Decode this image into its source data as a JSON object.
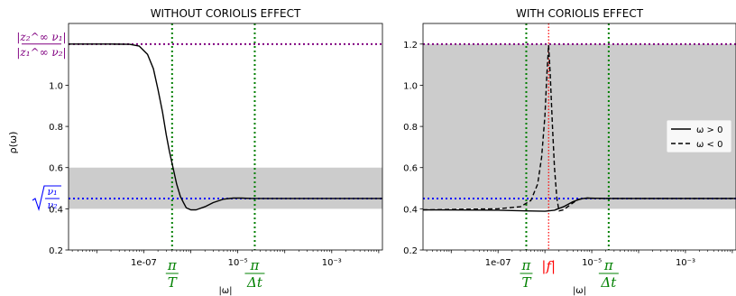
{
  "ylabel": "ρ(ω)",
  "xlabel": "|ω|",
  "colors": {
    "upper_ref": "#800080",
    "lower_ref": "#0000ff",
    "markers": "#008000",
    "coriolis": "#ff0000",
    "band": "#cccccc",
    "curve": "#000000"
  },
  "ref_labels": {
    "upper_num": "|z₂^∞ ν₁|",
    "upper_den": "|z₁^∞ ν₂|",
    "lower_num": "ν₁",
    "lower_den": "ν₂"
  },
  "marker_labels": {
    "pi_T": {
      "num": "π",
      "den": "T"
    },
    "pi_dt": {
      "num": "π",
      "den": "Δt"
    },
    "f": "|f|"
  },
  "chart_data": [
    {
      "type": "line",
      "title": "WITHOUT CORIOLIS EFFECT",
      "xscale": "log",
      "xlim": [
        2.5e-09,
        0.012
      ],
      "ylim": [
        0.2,
        1.3
      ],
      "yticks": [
        0.2,
        0.4,
        0.6,
        0.8,
        1.0
      ],
      "ytick_labels": [
        "0.2",
        "0.4",
        "0.6",
        "0.8",
        "1.0"
      ],
      "upper_ref_label_y": 1.2,
      "lower_ref_label_y": 0.45,
      "xticks": [
        {
          "x": 1e-07,
          "label": "1e-07"
        },
        {
          "x": 1e-05,
          "label": "10⁻⁵"
        },
        {
          "x": 0.001,
          "label": "10⁻³"
        }
      ],
      "shaded_band": [
        0.4,
        0.6
      ],
      "hlines": [
        {
          "y": 1.2,
          "kind": "upper_ref"
        },
        {
          "y": 0.45,
          "kind": "lower_ref"
        }
      ],
      "vlines": [
        {
          "x": 4e-07,
          "kind": "markers",
          "label": "pi_T"
        },
        {
          "x": 2.3e-05,
          "kind": "markers",
          "label": "pi_dt"
        }
      ],
      "series": [
        {
          "style": "solid",
          "points": [
            [
              2.5e-09,
              1.2
            ],
            [
              2e-08,
              1.2
            ],
            [
              5e-08,
              1.199
            ],
            [
              8e-08,
              1.19
            ],
            [
              1.2e-07,
              1.15
            ],
            [
              1.6e-07,
              1.08
            ],
            [
              2e-07,
              0.98
            ],
            [
              2.5e-07,
              0.87
            ],
            [
              3e-07,
              0.76
            ],
            [
              3.5e-07,
              0.68
            ],
            [
              4e-07,
              0.62
            ],
            [
              5e-07,
              0.52
            ],
            [
              6e-07,
              0.46
            ],
            [
              7e-07,
              0.43
            ],
            [
              8e-07,
              0.405
            ],
            [
              1e-06,
              0.395
            ],
            [
              1.3e-06,
              0.395
            ],
            [
              2e-06,
              0.41
            ],
            [
              3e-06,
              0.43
            ],
            [
              5e-06,
              0.447
            ],
            [
              8e-06,
              0.452
            ],
            [
              1.2e-05,
              0.452
            ],
            [
              2e-05,
              0.45
            ],
            [
              0.0001,
              0.45
            ],
            [
              0.012,
              0.45
            ]
          ]
        }
      ]
    },
    {
      "type": "line",
      "title": "WITH CORIOLIS EFFECT",
      "xscale": "log",
      "xlim": [
        2.5e-09,
        0.012
      ],
      "ylim": [
        0.2,
        1.3
      ],
      "yticks": [
        0.2,
        0.4,
        0.6,
        0.8,
        1.0,
        1.2
      ],
      "ytick_labels": [
        "0.2",
        "0.4",
        "0.6",
        "0.8",
        "1.0",
        "1.2"
      ],
      "xticks": [
        {
          "x": 1e-07,
          "label": "1e-07"
        },
        {
          "x": 1e-05,
          "label": "10⁻⁵"
        },
        {
          "x": 0.001,
          "label": "10⁻³"
        }
      ],
      "shaded_band": [
        0.4,
        1.2
      ],
      "hlines": [
        {
          "y": 1.2,
          "kind": "upper_ref"
        },
        {
          "y": 0.45,
          "kind": "lower_ref"
        }
      ],
      "vlines": [
        {
          "x": 4e-07,
          "kind": "markers",
          "label": "pi_T"
        },
        {
          "x": 1.2e-06,
          "kind": "coriolis",
          "label": "f"
        },
        {
          "x": 2.3e-05,
          "kind": "markers",
          "label": "pi_dt"
        }
      ],
      "legend": {
        "position": "center-right",
        "entries": [
          {
            "label": "ω > 0",
            "style": "solid"
          },
          {
            "label": "ω < 0",
            "style": "dashed"
          }
        ]
      },
      "series": [
        {
          "name": "ω > 0",
          "style": "solid",
          "points": [
            [
              2.5e-09,
              0.395
            ],
            [
              1e-07,
              0.393
            ],
            [
              4e-07,
              0.39
            ],
            [
              1e-06,
              0.388
            ],
            [
              1.6e-06,
              0.393
            ],
            [
              2.5e-06,
              0.41
            ],
            [
              4e-06,
              0.435
            ],
            [
              6e-06,
              0.449
            ],
            [
              8e-06,
              0.452
            ],
            [
              1.2e-05,
              0.451
            ],
            [
              2e-05,
              0.45
            ],
            [
              0.0001,
              0.45
            ],
            [
              0.012,
              0.45
            ]
          ]
        },
        {
          "name": "ω < 0",
          "style": "dashed",
          "points": [
            [
              2.5e-09,
              0.395
            ],
            [
              1e-07,
              0.4
            ],
            [
              3e-07,
              0.41
            ],
            [
              5e-07,
              0.44
            ],
            [
              7e-07,
              0.52
            ],
            [
              8.5e-07,
              0.65
            ],
            [
              1e-06,
              0.85
            ],
            [
              1.1e-06,
              1.05
            ],
            [
              1.2e-06,
              1.195
            ],
            [
              1.3e-06,
              1.05
            ],
            [
              1.45e-06,
              0.8
            ],
            [
              1.6e-06,
              0.6
            ],
            [
              1.8e-06,
              0.45
            ],
            [
              2e-06,
              0.39
            ],
            [
              2.5e-06,
              0.395
            ],
            [
              3.5e-06,
              0.42
            ],
            [
              5e-06,
              0.445
            ],
            [
              8e-06,
              0.452
            ],
            [
              1.5e-05,
              0.45
            ],
            [
              0.012,
              0.45
            ]
          ]
        }
      ]
    }
  ]
}
